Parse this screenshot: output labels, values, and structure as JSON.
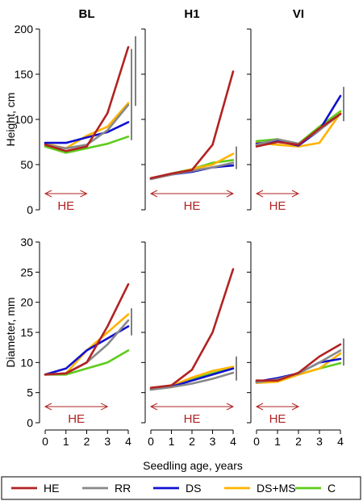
{
  "chart_data": {
    "type": "line",
    "x": [
      0,
      1,
      2,
      3,
      4
    ],
    "xticks": [
      "0",
      "1",
      "2",
      "3",
      "4"
    ],
    "xlabel": "Seedling age, years",
    "xlim": [
      0,
      4
    ],
    "colors": {
      "HE": "#b22222",
      "RR": "#888888",
      "DS": "#1010d0",
      "DS+MS": "#ffb300",
      "C": "#5ecb1a"
    },
    "legend": {
      "position": "bottom",
      "entries": [
        "HE",
        "RR",
        "DS",
        "DS+MS",
        "C"
      ]
    },
    "columns": [
      "BL",
      "H1",
      "VI"
    ],
    "rows": [
      {
        "ylabel": "Height, cm",
        "ylim": [
          0,
          200
        ],
        "yticks": [
          "0",
          "50",
          "100",
          "150",
          "200"
        ],
        "he_label": "HE",
        "panels": [
          {
            "title": "BL",
            "he_span": [
              0,
              2
            ],
            "series": [
              {
                "name": "HE",
                "values": [
                  72,
                  65,
                  70,
                  107,
                  180
                ]
              },
              {
                "name": "RR",
                "values": [
                  72,
                  68,
                  72,
                  88,
                  116
                ]
              },
              {
                "name": "DS",
                "values": [
                  74,
                  74,
                  80,
                  86,
                  97
                ]
              },
              {
                "name": "DS+MS",
                "values": [
                  73,
                  68,
                  82,
                  92,
                  118
                ]
              },
              {
                "name": "C",
                "values": [
                  70,
                  63,
                  68,
                  73,
                  81
                ]
              }
            ],
            "range_bars": [
              {
                "y": [
                  77,
                  178
                ]
              },
              {
                "y": [
                  115,
                  192
                ]
              }
            ]
          },
          {
            "title": "H1",
            "he_span": [
              0,
              4
            ],
            "series": [
              {
                "name": "HE",
                "values": [
                  35,
                  40,
                  44,
                  72,
                  153
                ]
              },
              {
                "name": "RR",
                "values": [
                  34,
                  39,
                  43,
                  47,
                  52
                ]
              },
              {
                "name": "DS",
                "values": [
                  34,
                  39,
                  42,
                  47,
                  49
                ]
              },
              {
                "name": "DS+MS",
                "values": [
                  34,
                  39,
                  45,
                  50,
                  62
                ]
              },
              {
                "name": "C",
                "values": [
                  34,
                  40,
                  45,
                  52,
                  55
                ]
              }
            ],
            "range_bars": [
              {
                "y": [
                  45,
                  70
                ]
              }
            ]
          },
          {
            "title": "VI",
            "he_span": [
              0,
              2
            ],
            "series": [
              {
                "name": "HE",
                "values": [
                  70,
                  75,
                  72,
                  90,
                  106
                ]
              },
              {
                "name": "RR",
                "values": [
                  72,
                  78,
                  73,
                  88,
                  106
                ]
              },
              {
                "name": "DS",
                "values": [
                  73,
                  76,
                  71,
                  88,
                  126
                ]
              },
              {
                "name": "DS+MS",
                "values": [
                  74,
                  72,
                  70,
                  74,
                  107
                ]
              },
              {
                "name": "C",
                "values": [
                  76,
                  78,
                  73,
                  92,
                  109
                ]
              }
            ],
            "range_bars": [
              {
                "y": [
                  98,
                  136
                ]
              }
            ]
          }
        ]
      },
      {
        "ylabel": "Diameter, mm",
        "ylim": [
          0,
          30
        ],
        "yticks": [
          "0",
          "5",
          "10",
          "15",
          "20",
          "25",
          "30"
        ],
        "he_label": "HE",
        "panels": [
          {
            "title": "",
            "he_span": [
              0,
              3
            ],
            "series": [
              {
                "name": "HE",
                "values": [
                  8,
                  8.2,
                  10,
                  16,
                  23
                ]
              },
              {
                "name": "RR",
                "values": [
                  8,
                  8.2,
                  10,
                  13,
                  17
                ]
              },
              {
                "name": "DS",
                "values": [
                  8,
                  9,
                  12,
                  14,
                  16
                ]
              },
              {
                "name": "DS+MS",
                "values": [
                  8,
                  8.2,
                  12,
                  15,
                  18
                ]
              },
              {
                "name": "C",
                "values": [
                  8,
                  8,
                  9,
                  10,
                  12
                ]
              }
            ],
            "range_bars": [
              {
                "y": [
                  14.5,
                  19
                ]
              }
            ]
          },
          {
            "title": "",
            "he_span": [
              0,
              4
            ],
            "series": [
              {
                "name": "HE",
                "values": [
                  5.8,
                  6.2,
                  8.8,
                  15,
                  25.5
                ]
              },
              {
                "name": "RR",
                "values": [
                  5.5,
                  5.9,
                  6.5,
                  7.3,
                  8.3
                ]
              },
              {
                "name": "DS",
                "values": [
                  5.5,
                  6,
                  7,
                  8,
                  9
                ]
              },
              {
                "name": "DS+MS",
                "values": [
                  5.6,
                  6.1,
                  7.5,
                  8.6,
                  9.3
                ]
              },
              {
                "name": "C",
                "values": [
                  5.5,
                  6,
                  7.2,
                  8.2,
                  9
                ]
              }
            ],
            "range_bars": [
              {
                "y": [
                  7,
                  11
                ]
              }
            ]
          },
          {
            "title": "",
            "he_span": [
              0,
              2
            ],
            "series": [
              {
                "name": "HE",
                "values": [
                  7,
                  7,
                  8.3,
                  11,
                  13
                ]
              },
              {
                "name": "RR",
                "values": [
                  6.7,
                  7.2,
                  8.2,
                  10,
                  12
                ]
              },
              {
                "name": "DS",
                "values": [
                  6.8,
                  7.4,
                  8.2,
                  10,
                  10.6
                ]
              },
              {
                "name": "DS+MS",
                "values": [
                  6.6,
                  6.8,
                  8,
                  9,
                  11.5
                ]
              },
              {
                "name": "C",
                "values": [
                  7,
                  6.8,
                  8,
                  9,
                  9.9
                ]
              }
            ],
            "range_bars": [
              {
                "y": [
                  9.5,
                  14
                ]
              }
            ]
          }
        ]
      }
    ]
  }
}
